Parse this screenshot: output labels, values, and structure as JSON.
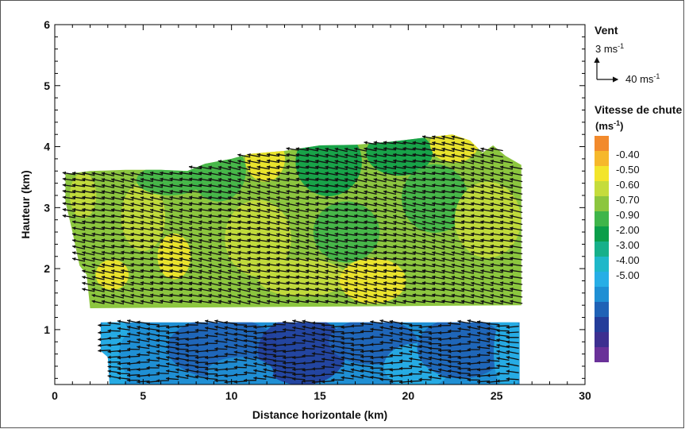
{
  "chart_data": {
    "type": "heatmap",
    "title": "",
    "xlabel": "Distance horizontale (km)",
    "ylabel": "Hauteur (km)",
    "xlim": [
      0,
      30
    ],
    "ylim": [
      0.1,
      6
    ],
    "x_ticks": [
      0,
      5,
      10,
      15,
      20,
      25,
      30
    ],
    "y_ticks": [
      1,
      2,
      3,
      4,
      5,
      6
    ],
    "grid": false,
    "wind_legend": {
      "title": "Vent",
      "vertical_label": "3 ms",
      "vertical_sup": "-1",
      "horizontal_label": "40 ms",
      "horizontal_sup": "-1"
    },
    "colorbar": {
      "title": "Vitesse de chute",
      "unit": "(ms",
      "unit_sup": "-1",
      "unit_close": ")",
      "labels": [
        "-0.40",
        "-0.50",
        "-0.60",
        "-0.70",
        "-0.90",
        "-2.00",
        "-3.00",
        "-4.00",
        "-5.00"
      ],
      "colors": [
        "#f28a2c",
        "#f6b82b",
        "#f3e52b",
        "#c5dc3c",
        "#8cc63f",
        "#3fb54a",
        "#0b9e4a",
        "#16b08a",
        "#1fb8c9",
        "#27aee6",
        "#1f8fd4",
        "#1f62b6",
        "#243d9a",
        "#3d2f90",
        "#6a3199"
      ]
    },
    "regions": [
      {
        "name": "upper",
        "x_range": [
          0.6,
          26.4
        ],
        "y_range": [
          1.35,
          4.2
        ],
        "fall_speed_range": [
          -0.9,
          -0.4
        ]
      },
      {
        "name": "lower",
        "x_range": [
          2.5,
          26.3
        ],
        "y_range": [
          0.1,
          1.15
        ],
        "fall_speed_range": [
          -5.0,
          -2.0
        ]
      }
    ]
  }
}
